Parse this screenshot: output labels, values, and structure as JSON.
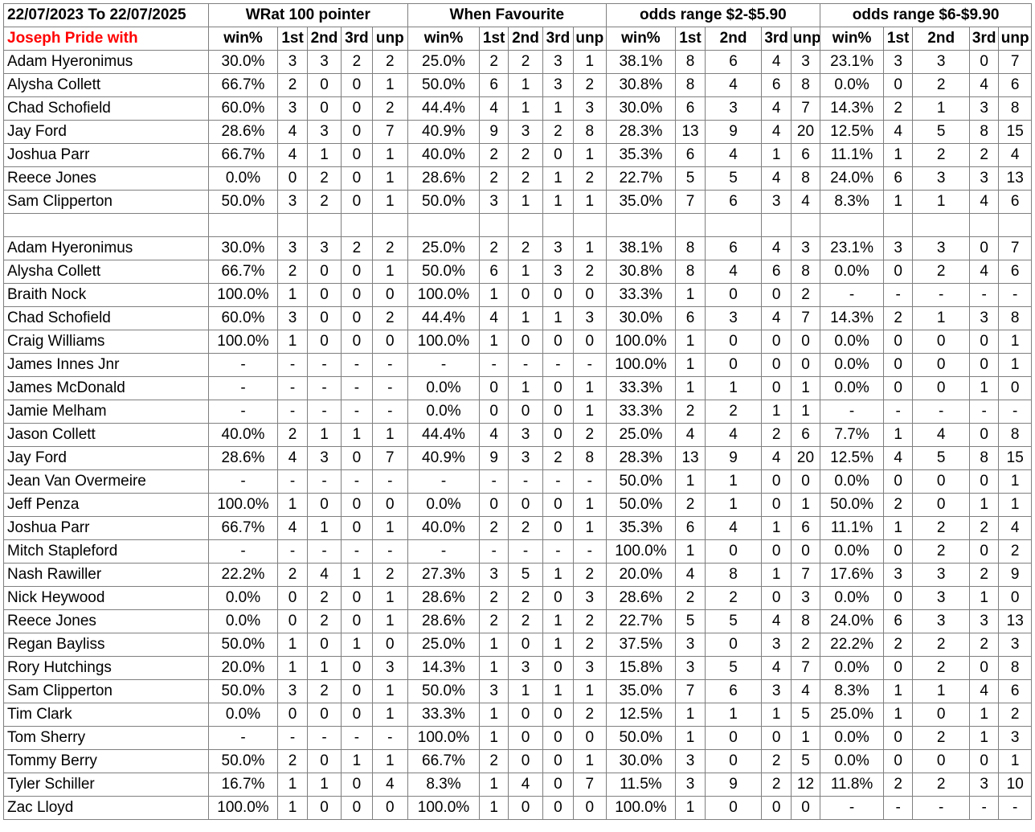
{
  "header": {
    "date_range": "22/07/2023 To 22/07/2025",
    "groups": [
      "WRat 100 pointer",
      "When Favourite",
      "odds range $2-$5.90",
      "odds range $6-$9.90"
    ],
    "row_label": "Joseph Pride with",
    "sub_headers": [
      "win%",
      "1st",
      "2nd",
      "3rd",
      "unp"
    ]
  },
  "section1": [
    [
      "Adam Hyeronimus",
      "30.0%",
      "3",
      "3",
      "2",
      "2",
      "25.0%",
      "2",
      "2",
      "3",
      "1",
      "38.1%",
      "8",
      "6",
      "4",
      "3",
      "23.1%",
      "3",
      "3",
      "0",
      "7"
    ],
    [
      "Alysha Collett",
      "66.7%",
      "2",
      "0",
      "0",
      "1",
      "50.0%",
      "6",
      "1",
      "3",
      "2",
      "30.8%",
      "8",
      "4",
      "6",
      "8",
      "0.0%",
      "0",
      "2",
      "4",
      "6"
    ],
    [
      "Chad Schofield",
      "60.0%",
      "3",
      "0",
      "0",
      "2",
      "44.4%",
      "4",
      "1",
      "1",
      "3",
      "30.0%",
      "6",
      "3",
      "4",
      "7",
      "14.3%",
      "2",
      "1",
      "3",
      "8"
    ],
    [
      "Jay Ford",
      "28.6%",
      "4",
      "3",
      "0",
      "7",
      "40.9%",
      "9",
      "3",
      "2",
      "8",
      "28.3%",
      "13",
      "9",
      "4",
      "20",
      "12.5%",
      "4",
      "5",
      "8",
      "15"
    ],
    [
      "Joshua Parr",
      "66.7%",
      "4",
      "1",
      "0",
      "1",
      "40.0%",
      "2",
      "2",
      "0",
      "1",
      "35.3%",
      "6",
      "4",
      "1",
      "6",
      "11.1%",
      "1",
      "2",
      "2",
      "4"
    ],
    [
      "Reece Jones",
      "0.0%",
      "0",
      "2",
      "0",
      "1",
      "28.6%",
      "2",
      "2",
      "1",
      "2",
      "22.7%",
      "5",
      "5",
      "4",
      "8",
      "24.0%",
      "6",
      "3",
      "3",
      "13"
    ],
    [
      "Sam Clipperton",
      "50.0%",
      "3",
      "2",
      "0",
      "1",
      "50.0%",
      "3",
      "1",
      "1",
      "1",
      "35.0%",
      "7",
      "6",
      "3",
      "4",
      "8.3%",
      "1",
      "1",
      "4",
      "6"
    ]
  ],
  "section2": [
    [
      "Adam Hyeronimus",
      "30.0%",
      "3",
      "3",
      "2",
      "2",
      "25.0%",
      "2",
      "2",
      "3",
      "1",
      "38.1%",
      "8",
      "6",
      "4",
      "3",
      "23.1%",
      "3",
      "3",
      "0",
      "7"
    ],
    [
      "Alysha Collett",
      "66.7%",
      "2",
      "0",
      "0",
      "1",
      "50.0%",
      "6",
      "1",
      "3",
      "2",
      "30.8%",
      "8",
      "4",
      "6",
      "8",
      "0.0%",
      "0",
      "2",
      "4",
      "6"
    ],
    [
      "Braith Nock",
      "100.0%",
      "1",
      "0",
      "0",
      "0",
      "100.0%",
      "1",
      "0",
      "0",
      "0",
      "33.3%",
      "1",
      "0",
      "0",
      "2",
      "-",
      "-",
      "-",
      "-",
      "-"
    ],
    [
      "Chad Schofield",
      "60.0%",
      "3",
      "0",
      "0",
      "2",
      "44.4%",
      "4",
      "1",
      "1",
      "3",
      "30.0%",
      "6",
      "3",
      "4",
      "7",
      "14.3%",
      "2",
      "1",
      "3",
      "8"
    ],
    [
      "Craig Williams",
      "100.0%",
      "1",
      "0",
      "0",
      "0",
      "100.0%",
      "1",
      "0",
      "0",
      "0",
      "100.0%",
      "1",
      "0",
      "0",
      "0",
      "0.0%",
      "0",
      "0",
      "0",
      "1"
    ],
    [
      "James Innes Jnr",
      "-",
      "-",
      "-",
      "-",
      "-",
      "-",
      "-",
      "-",
      "-",
      "-",
      "100.0%",
      "1",
      "0",
      "0",
      "0",
      "0.0%",
      "0",
      "0",
      "0",
      "1"
    ],
    [
      "James McDonald",
      "-",
      "-",
      "-",
      "-",
      "-",
      "0.0%",
      "0",
      "1",
      "0",
      "1",
      "33.3%",
      "1",
      "1",
      "0",
      "1",
      "0.0%",
      "0",
      "0",
      "1",
      "0"
    ],
    [
      "Jamie Melham",
      "-",
      "-",
      "-",
      "-",
      "-",
      "0.0%",
      "0",
      "0",
      "0",
      "1",
      "33.3%",
      "2",
      "2",
      "1",
      "1",
      "-",
      "-",
      "-",
      "-",
      "-"
    ],
    [
      "Jason Collett",
      "40.0%",
      "2",
      "1",
      "1",
      "1",
      "44.4%",
      "4",
      "3",
      "0",
      "2",
      "25.0%",
      "4",
      "4",
      "2",
      "6",
      "7.7%",
      "1",
      "4",
      "0",
      "8"
    ],
    [
      "Jay Ford",
      "28.6%",
      "4",
      "3",
      "0",
      "7",
      "40.9%",
      "9",
      "3",
      "2",
      "8",
      "28.3%",
      "13",
      "9",
      "4",
      "20",
      "12.5%",
      "4",
      "5",
      "8",
      "15"
    ],
    [
      "Jean Van Overmeire",
      "-",
      "-",
      "-",
      "-",
      "-",
      "-",
      "-",
      "-",
      "-",
      "-",
      "50.0%",
      "1",
      "1",
      "0",
      "0",
      "0.0%",
      "0",
      "0",
      "0",
      "1"
    ],
    [
      "Jeff Penza",
      "100.0%",
      "1",
      "0",
      "0",
      "0",
      "0.0%",
      "0",
      "0",
      "0",
      "1",
      "50.0%",
      "2",
      "1",
      "0",
      "1",
      "50.0%",
      "2",
      "0",
      "1",
      "1"
    ],
    [
      "Joshua Parr",
      "66.7%",
      "4",
      "1",
      "0",
      "1",
      "40.0%",
      "2",
      "2",
      "0",
      "1",
      "35.3%",
      "6",
      "4",
      "1",
      "6",
      "11.1%",
      "1",
      "2",
      "2",
      "4"
    ],
    [
      "Mitch Stapleford",
      "-",
      "-",
      "-",
      "-",
      "-",
      "-",
      "-",
      "-",
      "-",
      "-",
      "100.0%",
      "1",
      "0",
      "0",
      "0",
      "0.0%",
      "0",
      "2",
      "0",
      "2"
    ],
    [
      "Nash Rawiller",
      "22.2%",
      "2",
      "4",
      "1",
      "2",
      "27.3%",
      "3",
      "5",
      "1",
      "2",
      "20.0%",
      "4",
      "8",
      "1",
      "7",
      "17.6%",
      "3",
      "3",
      "2",
      "9"
    ],
    [
      "Nick Heywood",
      "0.0%",
      "0",
      "2",
      "0",
      "1",
      "28.6%",
      "2",
      "2",
      "0",
      "3",
      "28.6%",
      "2",
      "2",
      "0",
      "3",
      "0.0%",
      "0",
      "3",
      "1",
      "0"
    ],
    [
      "Reece Jones",
      "0.0%",
      "0",
      "2",
      "0",
      "1",
      "28.6%",
      "2",
      "2",
      "1",
      "2",
      "22.7%",
      "5",
      "5",
      "4",
      "8",
      "24.0%",
      "6",
      "3",
      "3",
      "13"
    ],
    [
      "Regan Bayliss",
      "50.0%",
      "1",
      "0",
      "1",
      "0",
      "25.0%",
      "1",
      "0",
      "1",
      "2",
      "37.5%",
      "3",
      "0",
      "3",
      "2",
      "22.2%",
      "2",
      "2",
      "2",
      "3"
    ],
    [
      "Rory Hutchings",
      "20.0%",
      "1",
      "1",
      "0",
      "3",
      "14.3%",
      "1",
      "3",
      "0",
      "3",
      "15.8%",
      "3",
      "5",
      "4",
      "7",
      "0.0%",
      "0",
      "2",
      "0",
      "8"
    ],
    [
      "Sam Clipperton",
      "50.0%",
      "3",
      "2",
      "0",
      "1",
      "50.0%",
      "3",
      "1",
      "1",
      "1",
      "35.0%",
      "7",
      "6",
      "3",
      "4",
      "8.3%",
      "1",
      "1",
      "4",
      "6"
    ],
    [
      "Tim Clark",
      "0.0%",
      "0",
      "0",
      "0",
      "1",
      "33.3%",
      "1",
      "0",
      "0",
      "2",
      "12.5%",
      "1",
      "1",
      "1",
      "5",
      "25.0%",
      "1",
      "0",
      "1",
      "2"
    ],
    [
      "Tom Sherry",
      "-",
      "-",
      "-",
      "-",
      "-",
      "100.0%",
      "1",
      "0",
      "0",
      "0",
      "50.0%",
      "1",
      "0",
      "0",
      "1",
      "0.0%",
      "0",
      "2",
      "1",
      "3"
    ],
    [
      "Tommy Berry",
      "50.0%",
      "2",
      "0",
      "1",
      "1",
      "66.7%",
      "2",
      "0",
      "0",
      "1",
      "30.0%",
      "3",
      "0",
      "2",
      "5",
      "0.0%",
      "0",
      "0",
      "0",
      "1"
    ],
    [
      "Tyler Schiller",
      "16.7%",
      "1",
      "1",
      "0",
      "4",
      "8.3%",
      "1",
      "4",
      "0",
      "7",
      "11.5%",
      "3",
      "9",
      "2",
      "12",
      "11.8%",
      "2",
      "2",
      "3",
      "10"
    ],
    [
      "Zac Lloyd",
      "100.0%",
      "1",
      "0",
      "0",
      "0",
      "100.0%",
      "1",
      "0",
      "0",
      "0",
      "100.0%",
      "1",
      "0",
      "0",
      "0",
      "-",
      "-",
      "-",
      "-",
      "-"
    ]
  ]
}
